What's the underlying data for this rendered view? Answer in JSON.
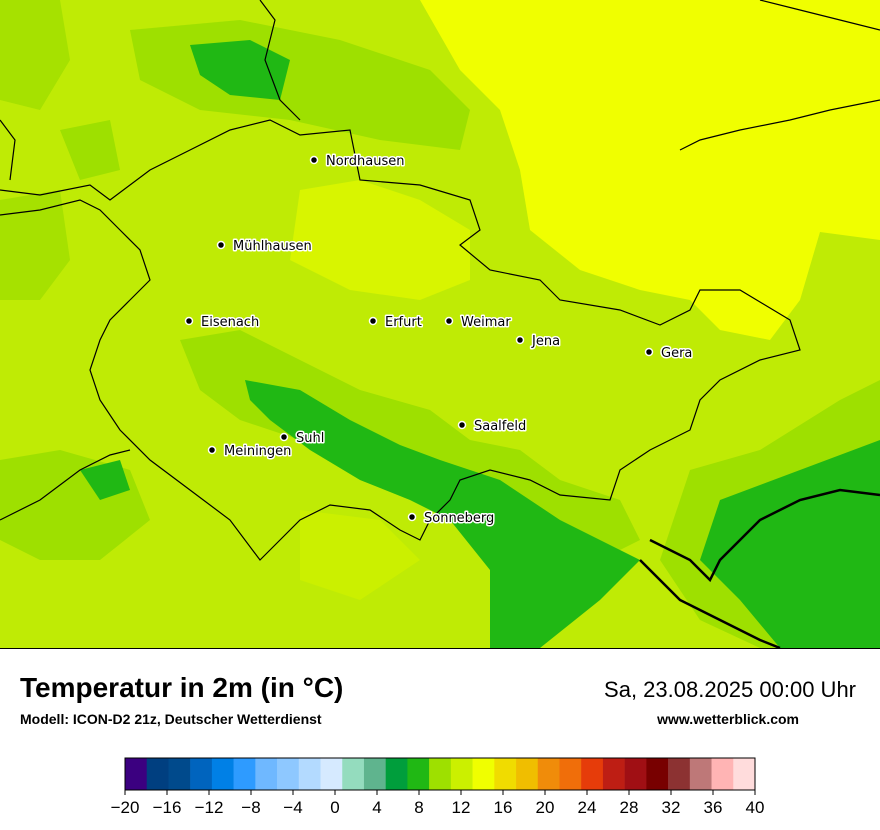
{
  "map": {
    "cities": [
      {
        "name": "Nordhausen",
        "icon": "city-dot-icon"
      },
      {
        "name": "Mühlhausen",
        "icon": "city-dot-icon"
      },
      {
        "name": "Eisenach",
        "icon": "city-dot-icon"
      },
      {
        "name": "Erfurt",
        "icon": "city-dot-icon"
      },
      {
        "name": "Weimar",
        "icon": "city-dot-icon"
      },
      {
        "name": "Jena",
        "icon": "city-dot-icon"
      },
      {
        "name": "Gera",
        "icon": "city-dot-icon"
      },
      {
        "name": "Saalfeld",
        "icon": "city-dot-icon"
      },
      {
        "name": "Suhl",
        "icon": "city-dot-icon"
      },
      {
        "name": "Meiningen",
        "icon": "city-dot-icon"
      },
      {
        "name": "Sonneberg",
        "icon": "city-dot-icon"
      }
    ]
  },
  "footer": {
    "title": "Temperatur in 2m (in °C)",
    "model": "Modell: ICON-D2 21z, Deutscher Wetterdienst",
    "datetime": "Sa, 23.08.2025 00:00 Uhr",
    "website": "www.wetterblick.com"
  },
  "legend": {
    "min": -20,
    "max": 40,
    "step": 2,
    "ticks": [
      "−20",
      "−16",
      "−12",
      "−8",
      "−4",
      "0",
      "4",
      "8",
      "12",
      "16",
      "20",
      "24",
      "28",
      "32",
      "36",
      "40"
    ],
    "colors": [
      "#3b0080",
      "#003f80",
      "#004a8c",
      "#0064be",
      "#0080e6",
      "#2e9bff",
      "#6fb8ff",
      "#8ec8ff",
      "#b3daff",
      "#d6eaff",
      "#94dcbe",
      "#5fb48e",
      "#009e3c",
      "#20b814",
      "#9ee000",
      "#cbf000",
      "#f0ff00",
      "#f0dc00",
      "#f0be00",
      "#f08c0a",
      "#f06e0a",
      "#e63c0a",
      "#be1e14",
      "#a00f14",
      "#780000",
      "#8c3232",
      "#be7878",
      "#ffb4b4",
      "#ffdcdc"
    ]
  }
}
